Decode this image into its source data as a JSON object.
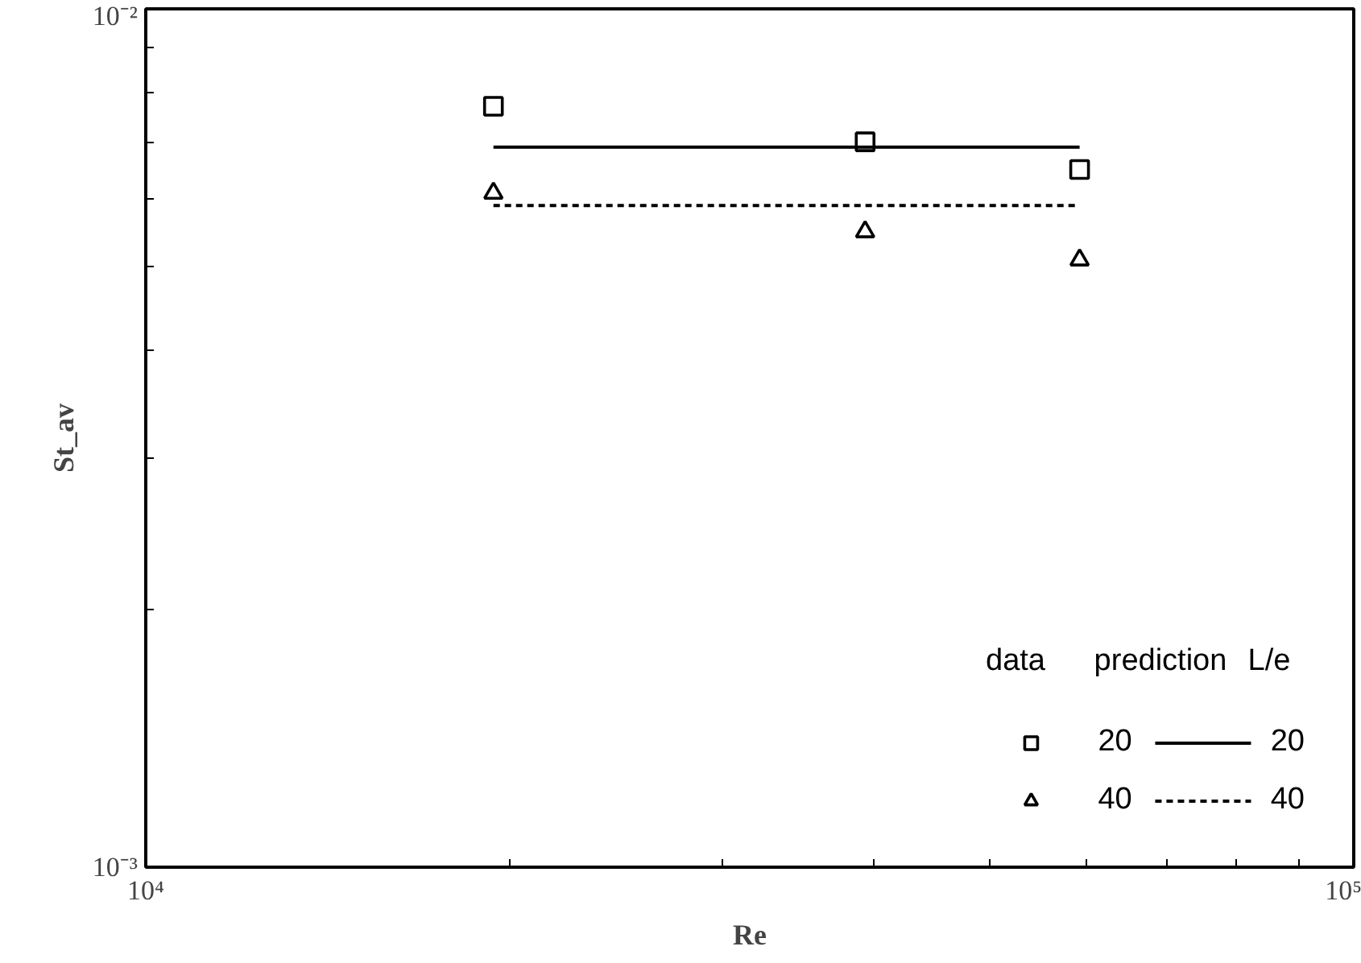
{
  "chart_data": {
    "type": "scatter",
    "xlabel": "Re",
    "ylabel": "St_av",
    "log": "xy",
    "legend": "bottom right",
    "annotations": [
      "data",
      "prediction",
      "L/e"
    ],
    "xlim": [
      10000,
      100000
    ],
    "ylim": [
      0.001,
      0.01
    ],
    "xticks": [
      {
        "value": 10000,
        "label": "10⁴"
      },
      {
        "value": 20000,
        "label": null
      },
      {
        "value": 30000,
        "label": null
      },
      {
        "value": 40000,
        "label": null
      },
      {
        "value": 50000,
        "label": null
      },
      {
        "value": 60000,
        "label": null
      },
      {
        "value": 70000,
        "label": null
      },
      {
        "value": 80000,
        "label": null
      },
      {
        "value": 90000,
        "label": null
      },
      {
        "value": 100000,
        "label": "10⁵"
      }
    ],
    "yticks": [
      {
        "value": 0.001,
        "label": "10⁻³"
      },
      {
        "value": 0.002,
        "label": null
      },
      {
        "value": 0.003,
        "label": null
      },
      {
        "value": 0.004,
        "label": null
      },
      {
        "value": 0.005,
        "label": null
      },
      {
        "value": 0.006,
        "label": null
      },
      {
        "value": 0.007,
        "label": null
      },
      {
        "value": 0.008,
        "label": null
      },
      {
        "value": 0.009,
        "label": null
      },
      {
        "value": 0.01,
        "label": "10⁻²"
      }
    ],
    "series": [
      {
        "name": "20",
        "marker": "square",
        "color": "#000000",
        "x": [
          19400,
          39400,
          59300
        ],
        "values": [
          0.0077,
          0.007,
          0.0065
        ]
      },
      {
        "name": "40",
        "marker": "triangle",
        "color": "#000000",
        "x": [
          19400,
          39400,
          59300
        ],
        "values": [
          0.0061,
          0.0055,
          0.0051
        ]
      },
      {
        "name": "20",
        "type": "line",
        "line_style": "solid",
        "color": "#000000",
        "x": [
          19400,
          59300
        ],
        "values": [
          0.0069,
          0.0069
        ]
      },
      {
        "name": "40",
        "type": "line",
        "line_style": "dashed",
        "color": "#000000",
        "x": [
          19400,
          59300
        ],
        "values": [
          0.0059,
          0.0059
        ]
      }
    ]
  }
}
